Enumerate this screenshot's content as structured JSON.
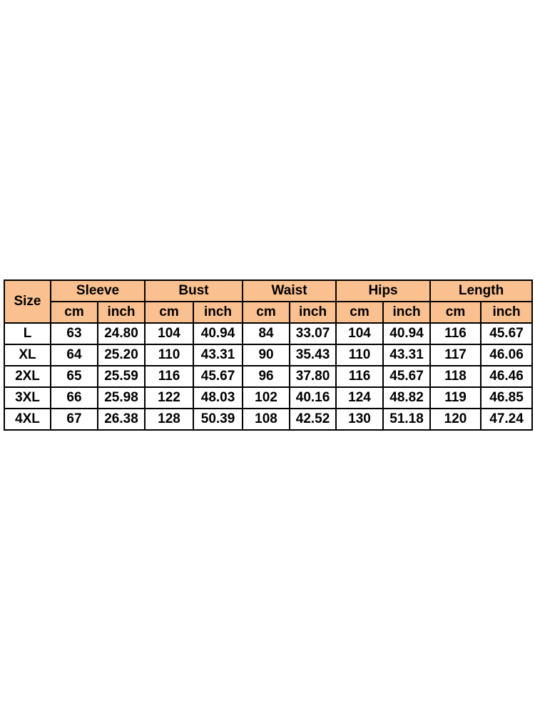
{
  "table": {
    "size_header": "Size",
    "groups": [
      {
        "label": "Sleeve",
        "units": [
          "cm",
          "inch"
        ]
      },
      {
        "label": "Bust",
        "units": [
          "cm",
          "inch"
        ]
      },
      {
        "label": "Waist",
        "units": [
          "cm",
          "inch"
        ]
      },
      {
        "label": "Hips",
        "units": [
          "cm",
          "inch"
        ]
      },
      {
        "label": "Length",
        "units": [
          "cm",
          "inch"
        ]
      }
    ],
    "rows": [
      [
        "L",
        "63",
        "24.80",
        "104",
        "40.94",
        "84",
        "33.07",
        "104",
        "40.94",
        "116",
        "45.67"
      ],
      [
        "XL",
        "64",
        "25.20",
        "110",
        "43.31",
        "90",
        "35.43",
        "110",
        "43.31",
        "117",
        "46.06"
      ],
      [
        "2XL",
        "65",
        "25.59",
        "116",
        "45.67",
        "96",
        "37.80",
        "116",
        "45.67",
        "118",
        "46.46"
      ],
      [
        "3XL",
        "66",
        "25.98",
        "122",
        "48.03",
        "102",
        "40.16",
        "124",
        "48.82",
        "119",
        "46.85"
      ],
      [
        "4XL",
        "67",
        "26.38",
        "128",
        "50.39",
        "108",
        "42.52",
        "130",
        "51.18",
        "120",
        "47.24"
      ]
    ]
  }
}
